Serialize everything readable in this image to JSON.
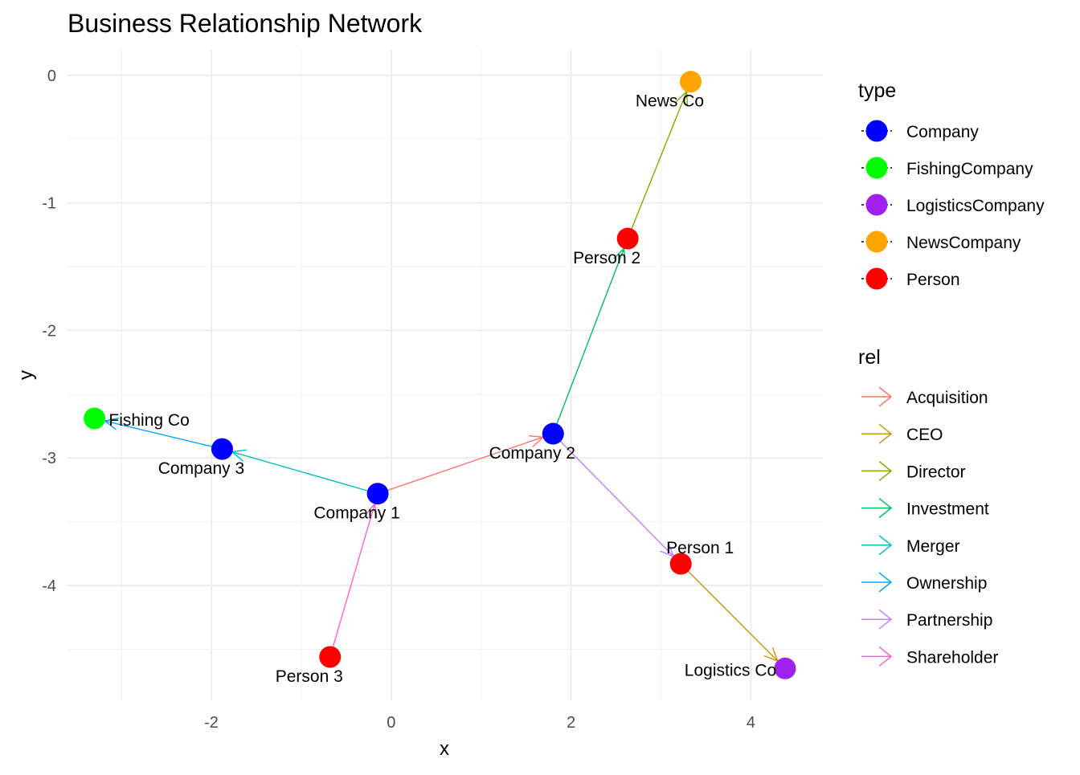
{
  "chart_data": {
    "type": "network",
    "title": "Business Relationship Network",
    "xlabel": "x",
    "ylabel": "y",
    "xlim": [
      -3.6,
      4.8
    ],
    "ylim": [
      -4.9,
      0.2
    ],
    "x_ticks": [
      -2,
      0,
      2,
      4
    ],
    "y_ticks": [
      0,
      -1,
      -2,
      -3,
      -4
    ],
    "grid": true,
    "nodes": [
      {
        "id": "company1",
        "label": "Company 1",
        "type": "Company",
        "x": -0.15,
        "y": -3.28
      },
      {
        "id": "company2",
        "label": "Company 2",
        "type": "Company",
        "x": 1.8,
        "y": -2.81
      },
      {
        "id": "company3",
        "label": "Company 3",
        "type": "Company",
        "x": -1.88,
        "y": -2.93
      },
      {
        "id": "fishingco",
        "label": "Fishing Co",
        "type": "FishingCompany",
        "x": -3.3,
        "y": -2.69
      },
      {
        "id": "newsco",
        "label": "News Co",
        "type": "NewsCompany",
        "x": 3.33,
        "y": -0.05
      },
      {
        "id": "person2",
        "label": "Person 2",
        "type": "Person",
        "x": 2.63,
        "y": -1.28
      },
      {
        "id": "person1",
        "label": "Person 1",
        "type": "Person",
        "x": 3.22,
        "y": -3.83
      },
      {
        "id": "person3",
        "label": "Person 3",
        "type": "Person",
        "x": -0.68,
        "y": -4.56
      },
      {
        "id": "logisticsco",
        "label": "Logistics Co",
        "type": "LogisticsCompany",
        "x": 4.38,
        "y": -4.65
      }
    ],
    "edges": [
      {
        "from": "company1",
        "to": "company2",
        "rel": "Acquisition"
      },
      {
        "from": "company1",
        "to": "company3",
        "rel": "Merger"
      },
      {
        "from": "company3",
        "to": "fishingco",
        "rel": "Ownership"
      },
      {
        "from": "person3",
        "to": "company1",
        "rel": "Shareholder"
      },
      {
        "from": "company2",
        "to": "person2",
        "rel": "Investment"
      },
      {
        "from": "person2",
        "to": "newsco",
        "rel": "Director"
      },
      {
        "from": "company2",
        "to": "person1",
        "rel": "Partnership"
      },
      {
        "from": "person1",
        "to": "logisticsco",
        "rel": "CEO"
      }
    ],
    "legends": [
      {
        "title": "type",
        "kind": "point",
        "entries": [
          {
            "label": "Company",
            "color": "#0000ff"
          },
          {
            "label": "FishingCompany",
            "color": "#00ff00"
          },
          {
            "label": "LogisticsCompany",
            "color": "#a020f0"
          },
          {
            "label": "NewsCompany",
            "color": "#ffa500"
          },
          {
            "label": "Person",
            "color": "#ff0000"
          }
        ]
      },
      {
        "title": "rel",
        "kind": "arrow",
        "entries": [
          {
            "label": "Acquisition",
            "color": "#f8766d"
          },
          {
            "label": "CEO",
            "color": "#cd9600"
          },
          {
            "label": "Director",
            "color": "#7cae00"
          },
          {
            "label": "Investment",
            "color": "#00be67"
          },
          {
            "label": "Merger",
            "color": "#00bfc4"
          },
          {
            "label": "Ownership",
            "color": "#00a9ff"
          },
          {
            "label": "Partnership",
            "color": "#c77cff"
          },
          {
            "label": "Shareholder",
            "color": "#ff61cc"
          }
        ]
      }
    ],
    "legend_position": "right"
  }
}
